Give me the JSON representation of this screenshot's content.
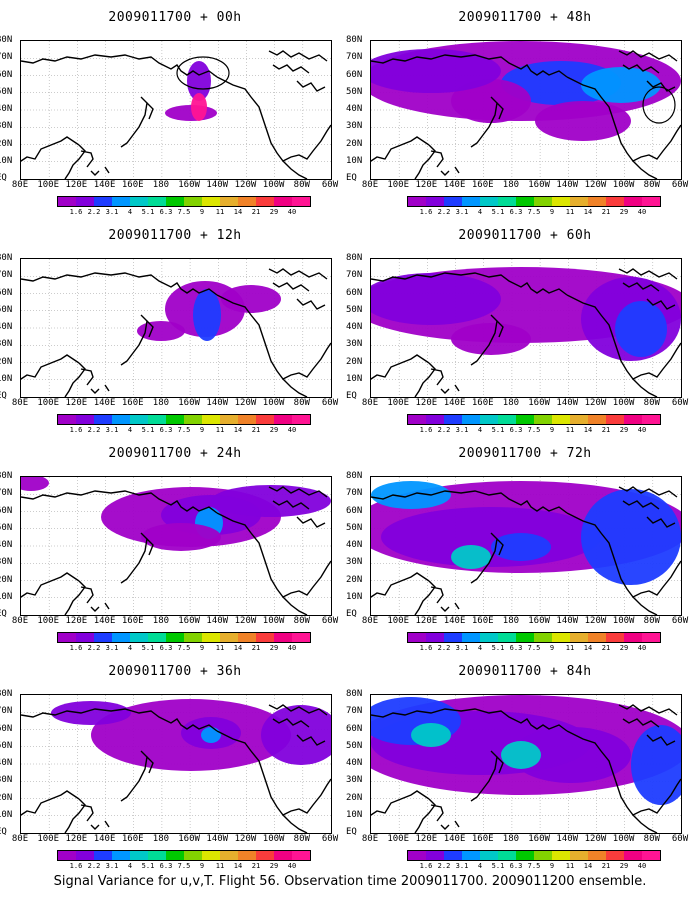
{
  "panels": [
    {
      "title": "2009011700 + 00h"
    },
    {
      "title": "2009011700 + 48h"
    },
    {
      "title": "2009011700 + 12h"
    },
    {
      "title": "2009011700 + 60h"
    },
    {
      "title": "2009011700 + 24h"
    },
    {
      "title": "2009011700 + 72h"
    },
    {
      "title": "2009011700 + 36h"
    },
    {
      "title": "2009011700 + 84h"
    }
  ],
  "lat_labels": [
    "80N",
    "70N",
    "60N",
    "50N",
    "40N",
    "30N",
    "20N",
    "10N",
    "EQ"
  ],
  "lon_labels": [
    "80E",
    "100E",
    "120E",
    "140E",
    "160E",
    "180",
    "160W",
    "140W",
    "120W",
    "100W",
    "80W",
    "60W"
  ],
  "colorbar": {
    "labels": [
      "1.6",
      "2.2",
      "3.1",
      "4",
      "5.1",
      "6.3",
      "7.5",
      "9",
      "11",
      "14",
      "21",
      "29",
      "40"
    ],
    "colors": [
      "#a000c8",
      "#8200dc",
      "#1e3cff",
      "#0096ff",
      "#00c8c8",
      "#00dc96",
      "#00c800",
      "#82d200",
      "#dce600",
      "#e6af2d",
      "#f08228",
      "#fa3c3c",
      "#f00082",
      "#ff1493"
    ]
  },
  "footer": "Signal Variance for u,v,T. Flight 56. Observation time 2009011700. 2009011200 ensemble."
}
